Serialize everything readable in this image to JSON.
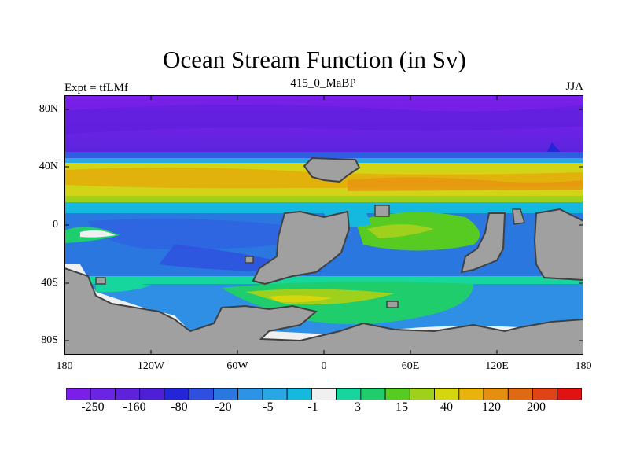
{
  "title": "Ocean Stream Function (in Sv)",
  "left_string": "Expt = tfLMf",
  "center_string": "415_0_MaBP",
  "right_string": "JJA",
  "lat_ticks": [
    "80N",
    "40N",
    "0",
    "40S",
    "80S"
  ],
  "lon_ticks": [
    "180",
    "120W",
    "60W",
    "0",
    "60E",
    "120E",
    "180"
  ],
  "colorbar_labels": [
    "-250",
    "-160",
    "-80",
    "-20",
    "-5",
    "-1",
    "3",
    "15",
    "40",
    "120",
    "200"
  ],
  "colors": {
    "land": "#a0a0a0",
    "coast": "#404040",
    "scale": [
      "#7b1ee8",
      "#6b24e4",
      "#5e22dd",
      "#4e1fd6",
      "#2326d8",
      "#2f4fe0",
      "#2a77e0",
      "#2f93e5",
      "#28a7e2",
      "#14b9dd",
      "#f0f0f0",
      "#16d69e",
      "#20cd6c",
      "#58cb22",
      "#9fd01c",
      "#d6d60e",
      "#e8b30b",
      "#e58f10",
      "#e06a14",
      "#e04416",
      "#e01212"
    ]
  }
}
